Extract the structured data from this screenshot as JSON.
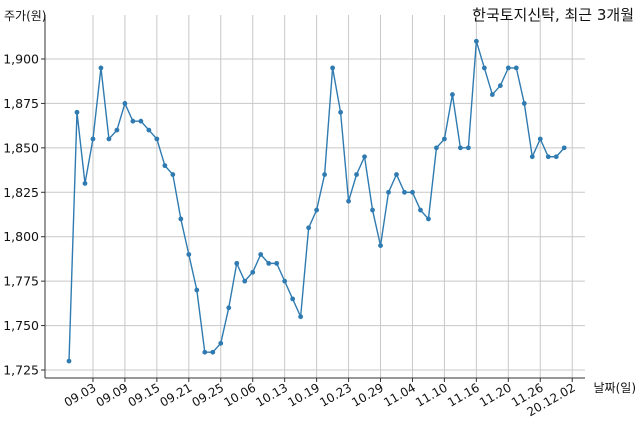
{
  "chart_data": {
    "type": "line",
    "title": "한국토지신탁, 최근 3개월",
    "ylabel": "주가(원)",
    "xlabel": "날짜(일)",
    "ylim": [
      1725,
      1925
    ],
    "y_ticks": [
      1725,
      1750,
      1775,
      1800,
      1825,
      1850,
      1875,
      1900
    ],
    "y_tick_labels": [
      "1,725",
      "1,750",
      "1,775",
      "1,800",
      "1,825",
      "1,850",
      "1,875",
      "1,900"
    ],
    "x_tick_labels": [
      "09.03",
      "09.09",
      "09.15",
      "09.21",
      "09.25",
      "10.06",
      "10.13",
      "10.19",
      "10.23",
      "10.29",
      "11.04",
      "11.10",
      "11.16",
      "11.20",
      "11.26",
      "20.12.02"
    ],
    "x_tick_indices": [
      3,
      7,
      11,
      15,
      19,
      23,
      27,
      31,
      35,
      39,
      43,
      47,
      51,
      55,
      59,
      63
    ],
    "grid": true,
    "line_color": "#2f7bb1",
    "series": [
      {
        "values": [
          1730,
          1870,
          1830,
          1855,
          1895,
          1855,
          1860,
          1875,
          1865,
          1865,
          1860,
          1855,
          1840,
          1835,
          1810,
          1790,
          1770,
          1735,
          1735,
          1740,
          1760,
          1785,
          1775,
          1780,
          1790,
          1785,
          1785,
          1775,
          1765,
          1755,
          1805,
          1815,
          1835,
          1895,
          1870,
          1820,
          1835,
          1845,
          1815,
          1795,
          1825,
          1835,
          1825,
          1825,
          1815,
          1810,
          1850,
          1855,
          1880,
          1850,
          1850,
          1910,
          1895,
          1880,
          1885,
          1895,
          1895,
          1875,
          1845,
          1855,
          1845,
          1845,
          1850
        ]
      }
    ]
  }
}
